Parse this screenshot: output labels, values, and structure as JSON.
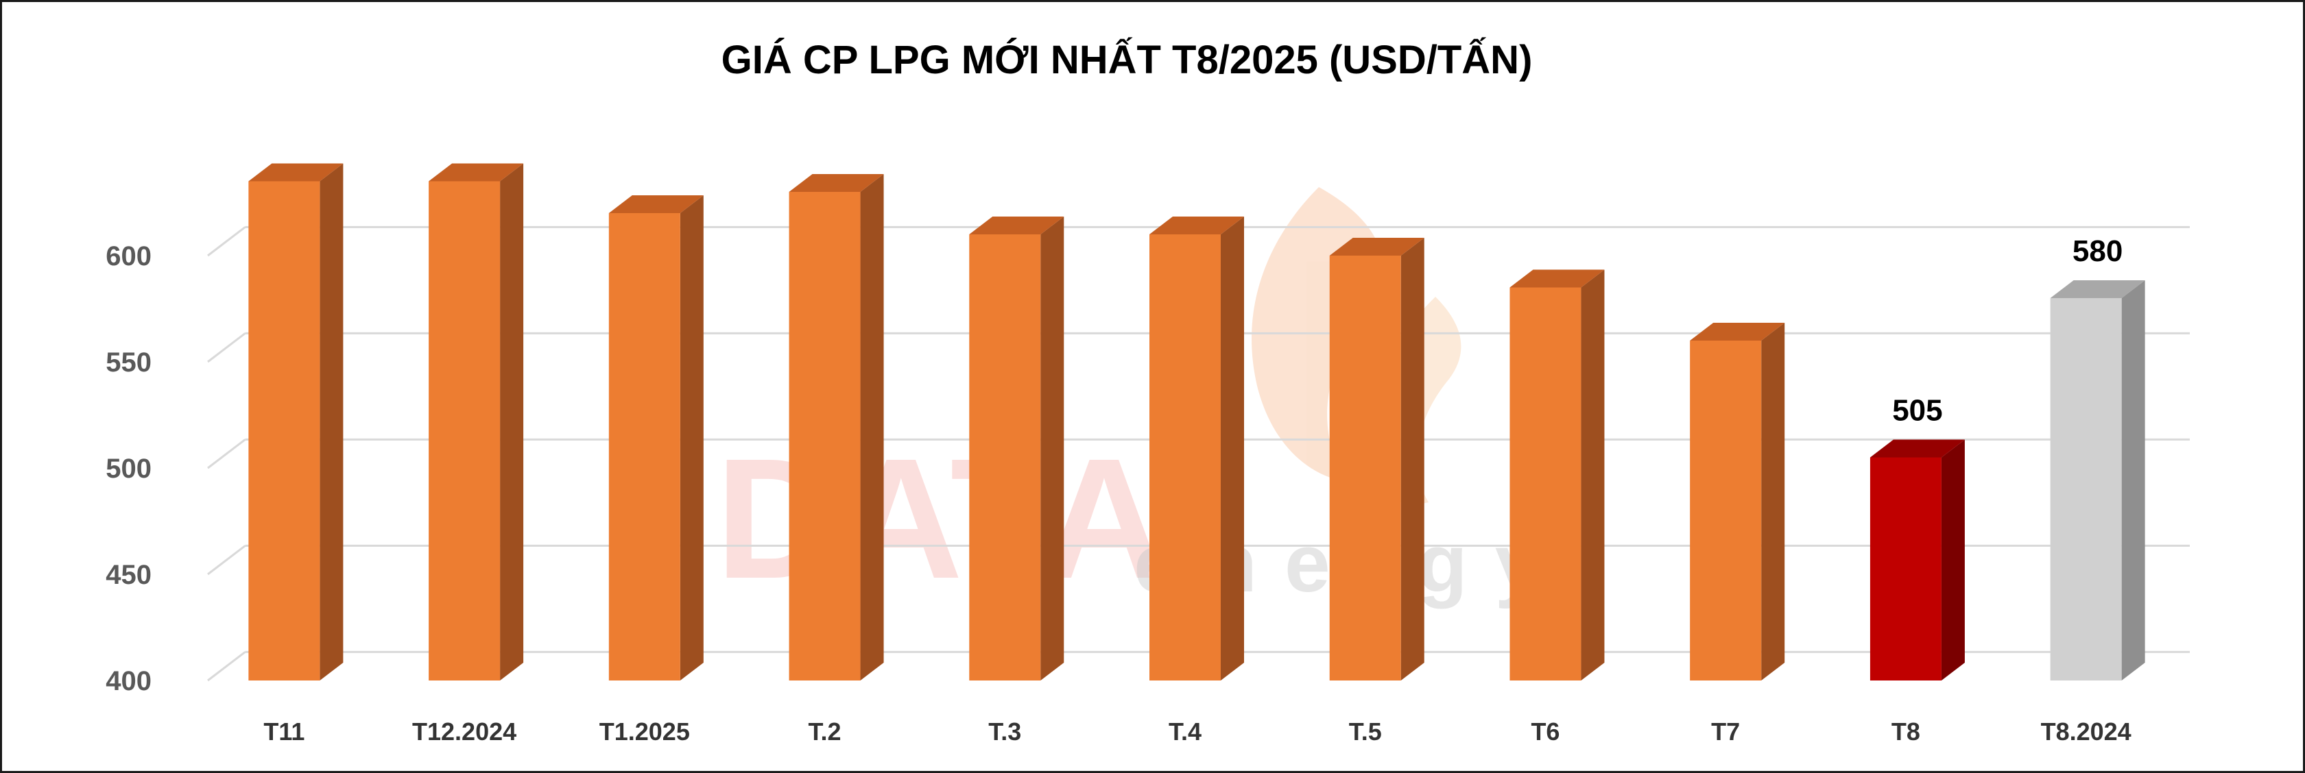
{
  "chart_data": {
    "type": "bar",
    "title": "GIÁ CP LPG MỚI NHẤT T8/2025 (USD/TẤN)",
    "categories": [
      "T11",
      "T12.2024",
      "T1.2025",
      "T.2",
      "T.3",
      "T.4",
      "T.5",
      "T6",
      "T7",
      "T8",
      "T8.2024"
    ],
    "values": [
      635,
      635,
      620,
      630,
      610,
      610,
      600,
      585,
      560,
      505,
      580
    ],
    "data_labels": [
      "",
      "",
      "",
      "",
      "",
      "",
      "",
      "",
      "",
      "505",
      "580"
    ],
    "ylim": [
      400,
      650
    ],
    "yticks": [
      "400",
      "450",
      "500",
      "550",
      "600"
    ],
    "grid": true,
    "legend": "none",
    "watermark": {
      "brand": "DATA",
      "sub": "energy"
    },
    "colors": {
      "default": {
        "front": "#ED7D31",
        "side": "#9E4F1F",
        "top": "#C55F22"
      },
      "highlight_current": {
        "front": "#C00000",
        "side": "#7A0000",
        "top": "#960000"
      },
      "comparison": {
        "front": "#D0D0D0",
        "side": "#8F8F8F",
        "top": "#A8A8A8"
      },
      "grid": "#D9D9D9"
    },
    "bar_styles": [
      "default",
      "default",
      "default",
      "default",
      "default",
      "default",
      "default",
      "default",
      "default",
      "highlight_current",
      "comparison"
    ]
  }
}
